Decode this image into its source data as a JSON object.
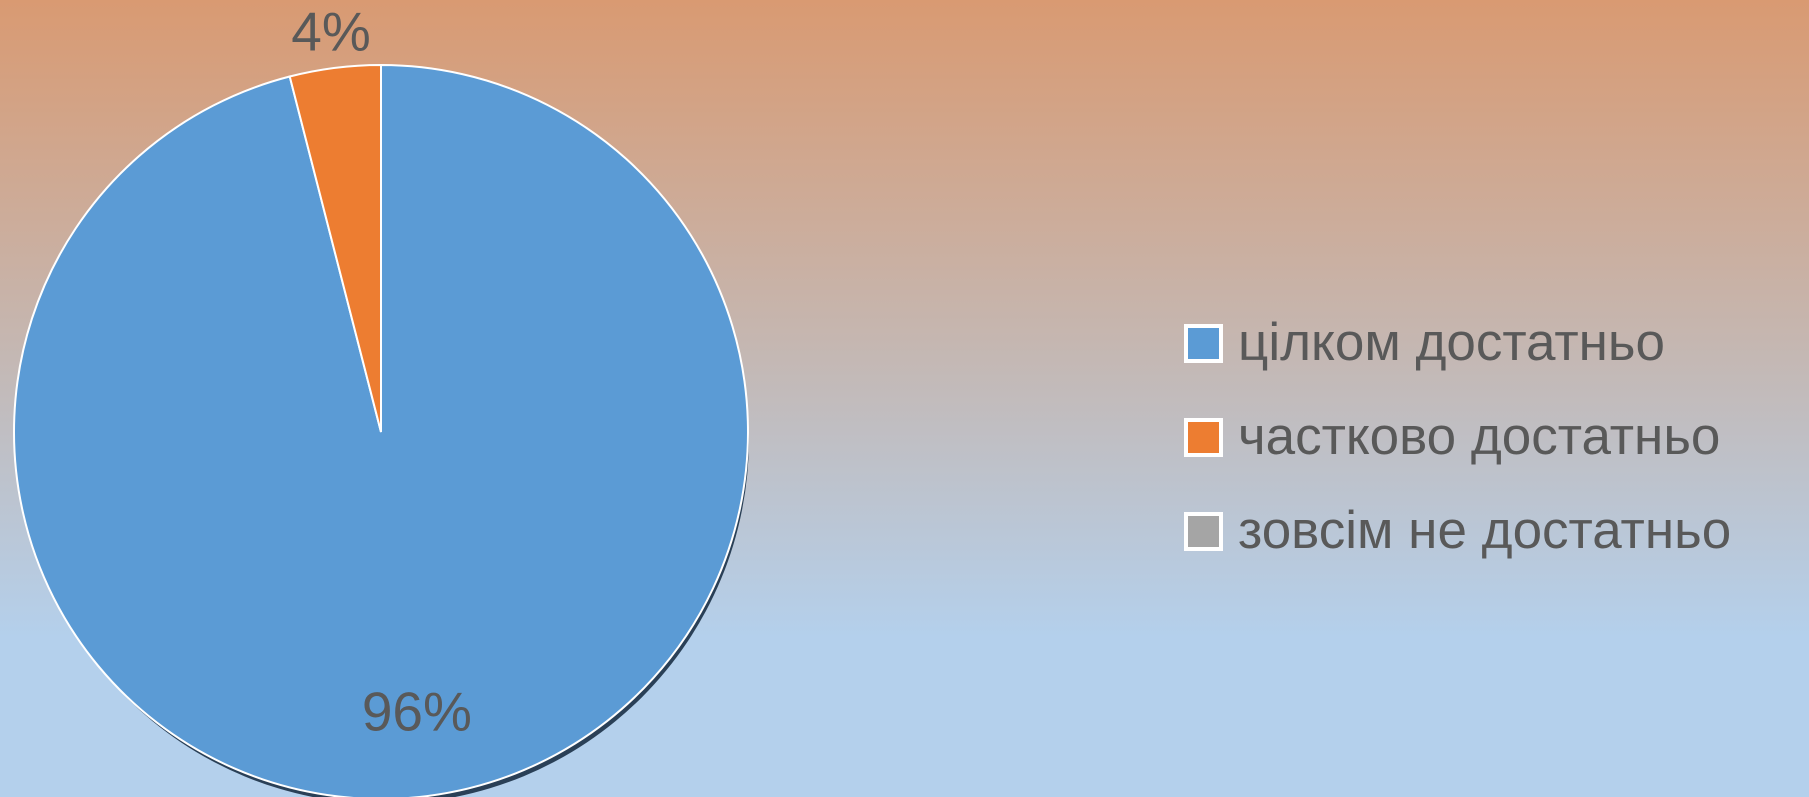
{
  "chart_data": {
    "type": "pie",
    "categories": [
      "цілком достатньо",
      "частково достатньо",
      "зовсім не достатньо"
    ],
    "values": [
      96,
      4,
      0
    ],
    "value_labels": [
      "96%",
      "4%",
      null
    ],
    "colors": [
      "#5b9bd5",
      "#ed7d31",
      "#a5a5a5"
    ],
    "legend": "right"
  }
}
